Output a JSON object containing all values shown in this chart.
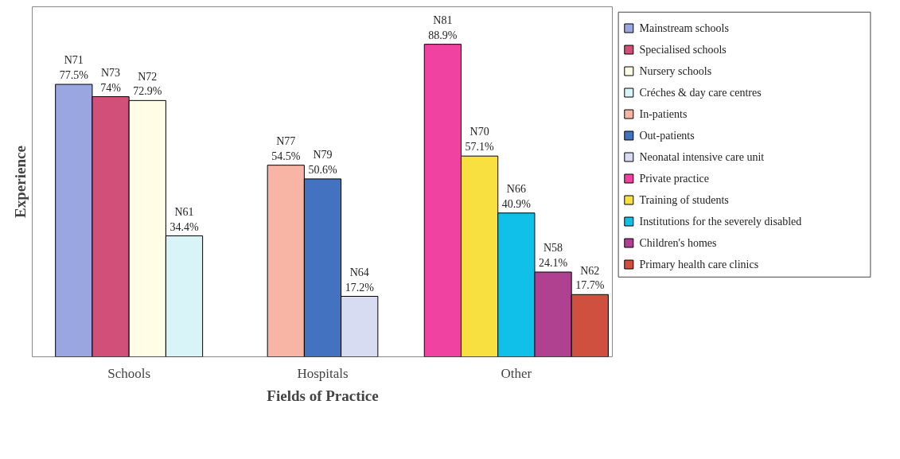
{
  "chart_data": {
    "type": "bar",
    "xlabel": "Fields of Practice",
    "ylabel": "Experience",
    "categories": [
      "Schools",
      "Hospitals",
      "Other"
    ],
    "legend": "right",
    "grid": false,
    "series": [
      {
        "name": "Mainstream schools",
        "color": "#9aa6e0",
        "values": [
          77.5,
          null,
          null
        ],
        "value_labels": [
          "N71\n77.5%",
          null,
          null
        ]
      },
      {
        "name": "Specialised schools",
        "color": "#d0507a",
        "values": [
          74,
          null,
          null
        ],
        "value_labels": [
          "N73\n74%",
          null,
          null
        ]
      },
      {
        "name": "Nursery schools",
        "color": "#fffde6",
        "values": [
          72.9,
          null,
          null
        ],
        "value_labels": [
          "N72\n72.9%",
          null,
          null
        ]
      },
      {
        "name": "Créches & day care centres",
        "color": "#d8f4f8",
        "values": [
          34.4,
          null,
          null
        ],
        "value_labels": [
          "N61\n34.4%",
          null,
          null
        ]
      },
      {
        "name": "In-patients",
        "color": "#f8b4a4",
        "values": [
          null,
          54.5,
          null
        ],
        "value_labels": [
          null,
          "N77\n54.5%",
          null
        ]
      },
      {
        "name": "Out-patients",
        "color": "#4272c0",
        "values": [
          null,
          50.6,
          null
        ],
        "value_labels": [
          null,
          "N79\n50.6%",
          null
        ]
      },
      {
        "name": "Neonatal intensive care unit",
        "color": "#d8dcf2",
        "values": [
          null,
          17.2,
          null
        ],
        "value_labels": [
          null,
          "N64\n17.2%",
          null
        ]
      },
      {
        "name": "Private practice",
        "color": "#f042a0",
        "values": [
          null,
          null,
          88.9
        ],
        "value_labels": [
          null,
          null,
          "N81\n88.9%"
        ]
      },
      {
        "name": "Training of students",
        "color": "#f8e040",
        "values": [
          null,
          null,
          57.1
        ],
        "value_labels": [
          null,
          null,
          "N70\n57.1%"
        ]
      },
      {
        "name": "Institutions for the severely disabled",
        "color": "#10c0e8",
        "values": [
          null,
          null,
          40.9
        ],
        "value_labels": [
          null,
          null,
          "N66\n40.9%"
        ]
      },
      {
        "name": "Children's homes",
        "color": "#b04090",
        "values": [
          null,
          null,
          24.1
        ],
        "value_labels": [
          null,
          null,
          "N58\n24.1%"
        ]
      },
      {
        "name": "Primary health care clinics",
        "color": "#d05040",
        "values": [
          null,
          null,
          17.7
        ],
        "value_labels": [
          null,
          null,
          "N62\n17.7%"
        ]
      }
    ]
  }
}
